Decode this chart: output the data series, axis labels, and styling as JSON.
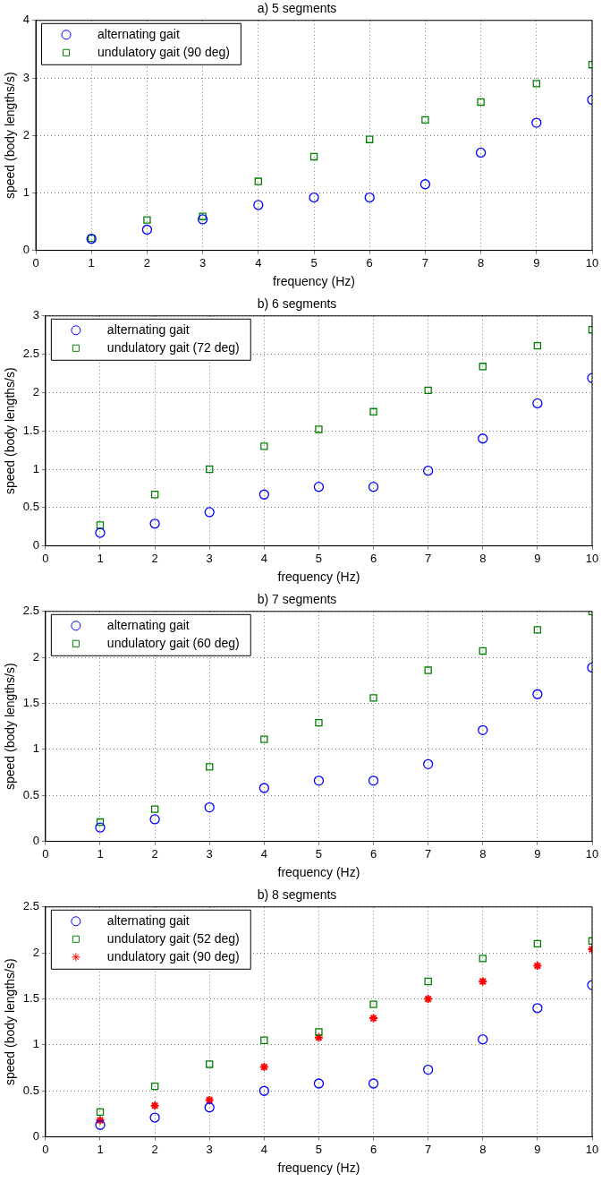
{
  "chart_data": [
    {
      "type": "scatter",
      "title": "a) 5 segments",
      "xlabel": "frequency (Hz)",
      "ylabel": "speed (body lengths/s)",
      "x": [
        1,
        2,
        3,
        4,
        5,
        6,
        7,
        8,
        9,
        10
      ],
      "xlim": [
        0,
        10
      ],
      "xticks": [
        0,
        1,
        2,
        3,
        4,
        5,
        6,
        7,
        8,
        9,
        10
      ],
      "ylim": [
        0,
        4
      ],
      "yticks": [
        0,
        1,
        2,
        3,
        4
      ],
      "grid": true,
      "legend": "top left",
      "series": [
        {
          "name": "alternating gait",
          "color": "#0000ff",
          "marker": "circle",
          "values": [
            0.2,
            0.36,
            0.54,
            0.79,
            0.92,
            0.92,
            1.15,
            1.7,
            2.22,
            2.62
          ]
        },
        {
          "name": "undulatory gait (90 deg)",
          "color": "#008000",
          "marker": "square",
          "values": [
            0.21,
            0.53,
            0.59,
            1.2,
            1.63,
            1.93,
            2.27,
            2.58,
            2.9,
            3.23
          ]
        }
      ]
    },
    {
      "type": "scatter",
      "title": "b) 6 segments",
      "xlabel": "frequency (Hz)",
      "ylabel": "speed (body lengths/s)",
      "x": [
        1,
        2,
        3,
        4,
        5,
        6,
        7,
        8,
        9,
        10
      ],
      "xlim": [
        0,
        10
      ],
      "xticks": [
        0,
        1,
        2,
        3,
        4,
        5,
        6,
        7,
        8,
        9,
        10
      ],
      "ylim": [
        0,
        3
      ],
      "yticks": [
        0,
        0.5,
        1,
        1.5,
        2,
        2.5,
        3
      ],
      "grid": true,
      "legend": "top left",
      "series": [
        {
          "name": "alternating gait",
          "color": "#0000ff",
          "marker": "circle",
          "values": [
            0.17,
            0.29,
            0.44,
            0.67,
            0.77,
            0.77,
            0.98,
            1.4,
            1.86,
            2.19
          ]
        },
        {
          "name": "undulatory gait (72 deg)",
          "color": "#008000",
          "marker": "square",
          "values": [
            0.27,
            0.67,
            1.0,
            1.3,
            1.52,
            1.75,
            2.03,
            2.34,
            2.61,
            2.82
          ]
        }
      ]
    },
    {
      "type": "scatter",
      "title": "b) 7 segments",
      "xlabel": "frequency (Hz)",
      "ylabel": "speed (body lengths/s)",
      "x": [
        1,
        2,
        3,
        4,
        5,
        6,
        7,
        8,
        9,
        10
      ],
      "xlim": [
        0,
        10
      ],
      "xticks": [
        0,
        1,
        2,
        3,
        4,
        5,
        6,
        7,
        8,
        9,
        10
      ],
      "ylim": [
        0,
        2.5
      ],
      "yticks": [
        0,
        0.5,
        1,
        1.5,
        2,
        2.5
      ],
      "grid": true,
      "legend": "top left",
      "series": [
        {
          "name": "alternating gait",
          "color": "#0000ff",
          "marker": "circle",
          "values": [
            0.15,
            0.24,
            0.37,
            0.58,
            0.66,
            0.66,
            0.84,
            1.21,
            1.6,
            1.89
          ]
        },
        {
          "name": "undulatory gait (60 deg)",
          "color": "#008000",
          "marker": "square",
          "values": [
            0.21,
            0.35,
            0.81,
            1.11,
            1.29,
            1.56,
            1.86,
            2.07,
            2.3,
            2.5
          ]
        }
      ]
    },
    {
      "type": "scatter",
      "title": "b) 8 segments",
      "xlabel": "frequency (Hz)",
      "ylabel": "speed (body lengths/s)",
      "x": [
        1,
        2,
        3,
        4,
        5,
        6,
        7,
        8,
        9,
        10
      ],
      "xlim": [
        0,
        10
      ],
      "xticks": [
        0,
        1,
        2,
        3,
        4,
        5,
        6,
        7,
        8,
        9,
        10
      ],
      "ylim": [
        0,
        2.5
      ],
      "yticks": [
        0,
        0.5,
        1,
        1.5,
        2,
        2.5
      ],
      "grid": true,
      "legend": "top left",
      "series": [
        {
          "name": "alternating gait",
          "color": "#0000ff",
          "marker": "circle",
          "values": [
            0.13,
            0.21,
            0.32,
            0.5,
            0.58,
            0.58,
            0.73,
            1.06,
            1.4,
            1.65
          ]
        },
        {
          "name": "undulatory gait (52 deg)",
          "color": "#008000",
          "marker": "square",
          "values": [
            0.27,
            0.55,
            0.79,
            1.05,
            1.14,
            1.44,
            1.69,
            1.94,
            2.1,
            2.13
          ]
        },
        {
          "name": "undulatory gait (90 deg)",
          "color": "#ff0000",
          "marker": "cross",
          "values": [
            0.18,
            0.34,
            0.4,
            0.76,
            1.08,
            1.29,
            1.5,
            1.69,
            1.86,
            2.04
          ]
        }
      ]
    }
  ]
}
